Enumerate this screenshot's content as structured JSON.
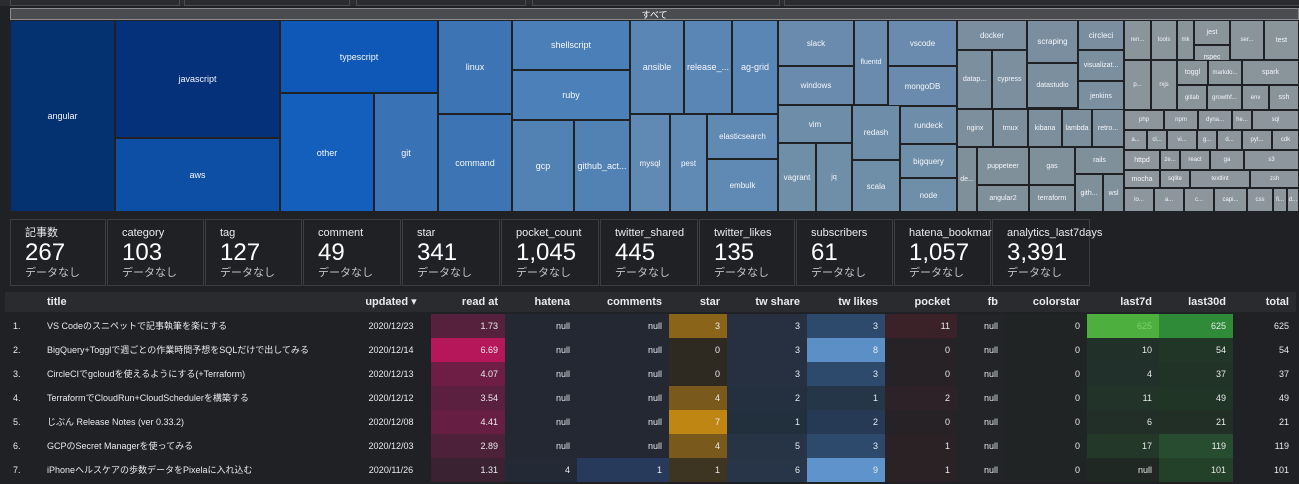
{
  "treemap": {
    "root_label": "すべて",
    "tiles": [
      {
        "label": "angular",
        "color": "#04316f"
      },
      {
        "label": "javascript",
        "color": "#05307a"
      },
      {
        "label": "aws",
        "color": "#0e4fa6"
      },
      {
        "label": "typescript",
        "color": "#0f58b8"
      },
      {
        "label": "other",
        "color": "#155fbc"
      },
      {
        "label": "git",
        "color": "#3a72b6"
      },
      {
        "label": "linux",
        "color": "#3c74b4"
      },
      {
        "label": "command",
        "color": "#3c74b4"
      },
      {
        "label": "shellscript",
        "color": "#4a7fb8"
      },
      {
        "label": "ruby",
        "color": "#4b80b8"
      },
      {
        "label": "gcp",
        "color": "#5282b4"
      },
      {
        "label": "github_act...",
        "color": "#5282b4"
      },
      {
        "label": "ansible",
        "color": "#5a86b5"
      },
      {
        "label": "release_...",
        "color": "#5a86b5"
      },
      {
        "label": "ag-grid",
        "color": "#5a86b5"
      },
      {
        "label": "mysql",
        "color": "#6089b3"
      },
      {
        "label": "pest",
        "color": "#6089b3"
      },
      {
        "label": "elasticsearch",
        "color": "#6089b3"
      },
      {
        "label": "embulk",
        "color": "#6089b3"
      },
      {
        "label": "slack",
        "color": "#6a8bad"
      },
      {
        "label": "fluentd",
        "color": "#6a8bad"
      },
      {
        "label": "vscode",
        "color": "#6a8bad"
      },
      {
        "label": "windows",
        "color": "#6a8bad"
      },
      {
        "label": "mongoDB",
        "color": "#6a8bad"
      },
      {
        "label": "vim",
        "color": "#6d8da9"
      },
      {
        "label": "redash",
        "color": "#6d8da9"
      },
      {
        "label": "rundeck",
        "color": "#6d8da9"
      },
      {
        "label": "vagrant",
        "color": "#6f8ea8"
      },
      {
        "label": "jq",
        "color": "#6f8ea8"
      },
      {
        "label": "scala",
        "color": "#6f8ea8"
      },
      {
        "label": "bigquery",
        "color": "#6f8ea8"
      },
      {
        "label": "node",
        "color": "#6f8ea8"
      },
      {
        "label": "docker",
        "color": "#7a8e9f"
      },
      {
        "label": "scraping",
        "color": "#7a8e9f"
      },
      {
        "label": "circleci",
        "color": "#7a8e9f"
      },
      {
        "label": "datap...",
        "color": "#7b8f9e"
      },
      {
        "label": "cypress",
        "color": "#7b8f9e"
      },
      {
        "label": "datastudio",
        "color": "#7b8f9e"
      },
      {
        "label": "visualizat...",
        "color": "#7b8f9e"
      },
      {
        "label": "jenkins",
        "color": "#7b8f9e"
      },
      {
        "label": "nginx",
        "color": "#7d8f9c"
      },
      {
        "label": "tmux",
        "color": "#7d8f9c"
      },
      {
        "label": "kibana",
        "color": "#7d8f9c"
      },
      {
        "label": "lambda",
        "color": "#7d8f9c"
      },
      {
        "label": "retro...",
        "color": "#7d8f9c"
      },
      {
        "label": "de...",
        "color": "#80909b"
      },
      {
        "label": "puppeteer",
        "color": "#80909b"
      },
      {
        "label": "gas",
        "color": "#80909b"
      },
      {
        "label": "rails",
        "color": "#80909b"
      },
      {
        "label": "angular2",
        "color": "#80909b"
      },
      {
        "label": "terraform",
        "color": "#80909b"
      },
      {
        "label": "gith...",
        "color": "#80909b"
      },
      {
        "label": "wsl",
        "color": "#80909b"
      },
      {
        "label": "ren...",
        "color": "#8a949b"
      },
      {
        "label": "tools",
        "color": "#8a949b"
      },
      {
        "label": "mk",
        "color": "#8a949b"
      },
      {
        "label": "jest",
        "color": "#8a949b"
      },
      {
        "label": "ser...",
        "color": "#8a949b"
      },
      {
        "label": "test",
        "color": "#8a949b"
      },
      {
        "label": "rspec",
        "color": "#8a949b"
      },
      {
        "label": "p...",
        "color": "#8a949b"
      },
      {
        "label": "rxjs",
        "color": "#8a949b"
      },
      {
        "label": "toggl",
        "color": "#8a949b"
      },
      {
        "label": "markdo...",
        "color": "#8a949b"
      },
      {
        "label": "spark",
        "color": "#8a949b"
      },
      {
        "label": "gitlab",
        "color": "#8a949b"
      },
      {
        "label": "growthf...",
        "color": "#8a949b"
      },
      {
        "label": "env",
        "color": "#8a949b"
      },
      {
        "label": "ssh",
        "color": "#8a949b"
      },
      {
        "label": "php",
        "color": "#8d969c"
      },
      {
        "label": "npm",
        "color": "#8d969c"
      },
      {
        "label": "dyna...",
        "color": "#8d969c"
      },
      {
        "label": "he...",
        "color": "#8d969c"
      },
      {
        "label": "sql",
        "color": "#8d969c"
      },
      {
        "label": "a...",
        "color": "#8d969c"
      },
      {
        "label": "cl...",
        "color": "#8d969c"
      },
      {
        "label": "vi...",
        "color": "#8d969c"
      },
      {
        "label": "g...",
        "color": "#8d969c"
      },
      {
        "label": "d...",
        "color": "#8d969c"
      },
      {
        "label": "pyt...",
        "color": "#8d969c"
      },
      {
        "label": "cdk",
        "color": "#8d969c"
      },
      {
        "label": "httpd",
        "color": "#8d969c"
      },
      {
        "label": "ze...",
        "color": "#8d969c"
      },
      {
        "label": "react",
        "color": "#8d969c"
      },
      {
        "label": "ga",
        "color": "#8d969c"
      },
      {
        "label": "s3",
        "color": "#8d969c"
      },
      {
        "label": "mocha",
        "color": "#8d969c"
      },
      {
        "label": "sqlite",
        "color": "#8d969c"
      },
      {
        "label": "textlint",
        "color": "#8d969c"
      },
      {
        "label": "zsh",
        "color": "#8d969c"
      },
      {
        "label": "lo...",
        "color": "#8d969c"
      },
      {
        "label": "a...",
        "color": "#8d969c"
      },
      {
        "label": "c...",
        "color": "#8d969c"
      },
      {
        "label": "capi...",
        "color": "#8d969c"
      },
      {
        "label": "s...",
        "color": "#8d969c"
      },
      {
        "label": "css",
        "color": "#8d969c"
      },
      {
        "label": "fi...",
        "color": "#8d969c"
      },
      {
        "label": "d...",
        "color": "#8d969c"
      },
      {
        "label": "s...",
        "color": "#8d969c"
      }
    ]
  },
  "scorecards": [
    {
      "label": "記事数",
      "value": "267",
      "sub": "データなし"
    },
    {
      "label": "category",
      "value": "103",
      "sub": "データなし"
    },
    {
      "label": "tag",
      "value": "127",
      "sub": "データなし"
    },
    {
      "label": "comment",
      "value": "49",
      "sub": "データなし"
    },
    {
      "label": "star",
      "value": "341",
      "sub": "データなし"
    },
    {
      "label": "pocket_count",
      "value": "1,045",
      "sub": "データなし"
    },
    {
      "label": "twitter_shared",
      "value": "445",
      "sub": "データなし"
    },
    {
      "label": "twitter_likes",
      "value": "135",
      "sub": "データなし"
    },
    {
      "label": "subscribers",
      "value": "61",
      "sub": "データなし"
    },
    {
      "label": "hatena_bookmark",
      "value": "1,057",
      "sub": "データなし"
    },
    {
      "label": "analytics_last7days",
      "value": "3,391",
      "sub": "データなし"
    }
  ],
  "table": {
    "sort_icon": "sort-desc-icon",
    "columns": [
      "",
      "title",
      "updated ▾",
      "read at",
      "hatena",
      "comments",
      "star",
      "tw share",
      "tw likes",
      "pocket",
      "fb",
      "colorstar",
      "last7d",
      "last30d",
      "total"
    ],
    "rows": [
      {
        "n": "1.",
        "title": "VS Codeのスニペットで記事執筆を楽にする",
        "updated": "2020/12/23",
        "read_at": "1.73",
        "hatena": "null",
        "comments": "null",
        "star": "3",
        "tw_share": "3",
        "tw_likes": "3",
        "pocket": "11",
        "fb": "null",
        "colorstar": "0",
        "last7d": "625",
        "last30d": "625",
        "total": "625"
      },
      {
        "n": "2.",
        "title": "BigQuery+Togglで週ごとの作業時間予想をSQLだけで出してみる",
        "updated": "2020/12/14",
        "read_at": "6.69",
        "hatena": "null",
        "comments": "null",
        "star": "0",
        "tw_share": "3",
        "tw_likes": "8",
        "pocket": "0",
        "fb": "null",
        "colorstar": "0",
        "last7d": "10",
        "last30d": "54",
        "total": "54"
      },
      {
        "n": "3.",
        "title": "CircleCIでgcloudを使えるようにする(+Terraform)",
        "updated": "2020/12/13",
        "read_at": "4.07",
        "hatena": "null",
        "comments": "null",
        "star": "0",
        "tw_share": "3",
        "tw_likes": "3",
        "pocket": "0",
        "fb": "null",
        "colorstar": "0",
        "last7d": "4",
        "last30d": "37",
        "total": "37"
      },
      {
        "n": "4.",
        "title": "TerraformでCloudRun+CloudSchedulerを構築する",
        "updated": "2020/12/12",
        "read_at": "3.54",
        "hatena": "null",
        "comments": "null",
        "star": "4",
        "tw_share": "2",
        "tw_likes": "1",
        "pocket": "2",
        "fb": "null",
        "colorstar": "0",
        "last7d": "11",
        "last30d": "49",
        "total": "49"
      },
      {
        "n": "5.",
        "title": "じぶん Release Notes (ver 0.33.2)",
        "updated": "2020/12/08",
        "read_at": "4.41",
        "hatena": "null",
        "comments": "null",
        "star": "7",
        "tw_share": "1",
        "tw_likes": "2",
        "pocket": "0",
        "fb": "null",
        "colorstar": "0",
        "last7d": "6",
        "last30d": "21",
        "total": "21"
      },
      {
        "n": "6.",
        "title": "GCPのSecret Managerを使ってみる",
        "updated": "2020/12/03",
        "read_at": "2.89",
        "hatena": "null",
        "comments": "null",
        "star": "4",
        "tw_share": "5",
        "tw_likes": "3",
        "pocket": "1",
        "fb": "null",
        "colorstar": "0",
        "last7d": "17",
        "last30d": "119",
        "total": "119"
      },
      {
        "n": "7.",
        "title": "iPhoneヘルスケアの歩数データをPixelaに入れ込む",
        "updated": "2020/11/26",
        "read_at": "1.31",
        "hatena": "4",
        "comments": "1",
        "star": "1",
        "tw_share": "6",
        "tw_likes": "9",
        "pocket": "1",
        "fb": "null",
        "colorstar": "0",
        "last7d": "null",
        "last30d": "101",
        "total": "101"
      }
    ]
  }
}
